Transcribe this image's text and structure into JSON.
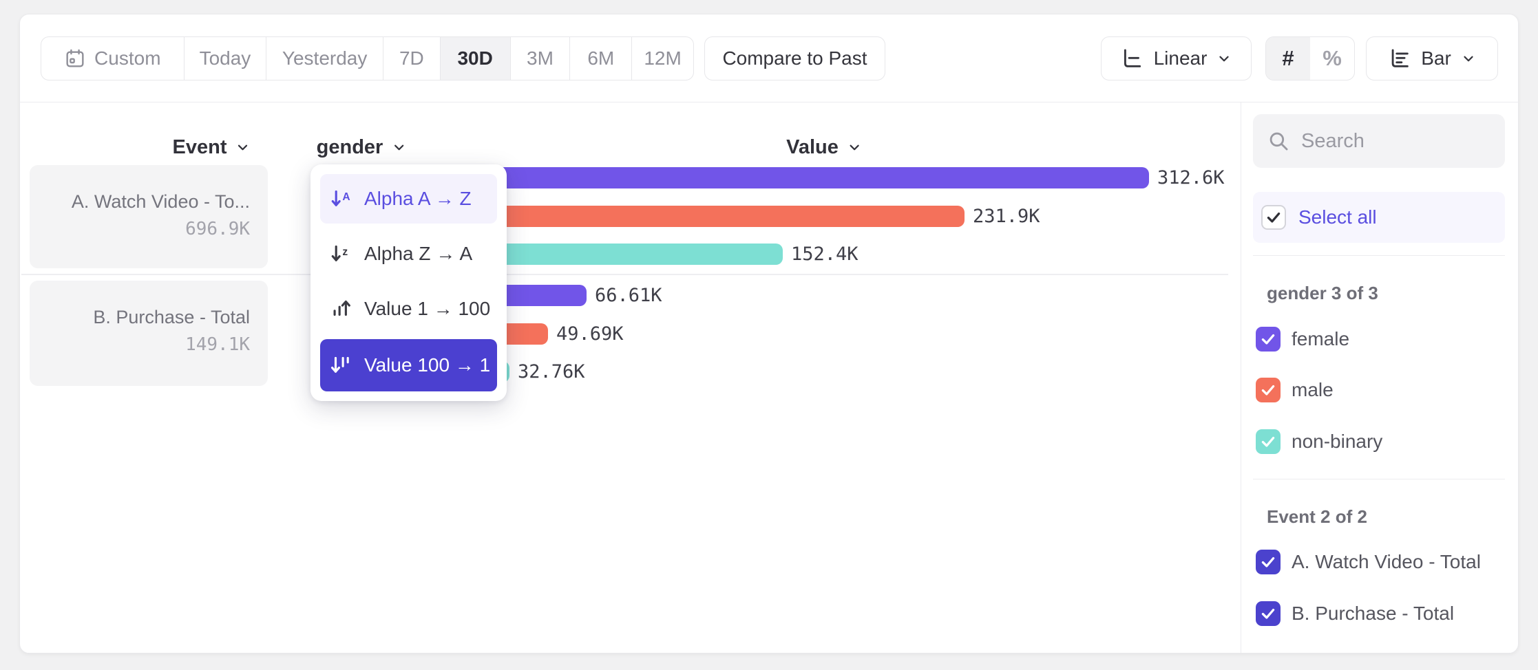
{
  "toolbar": {
    "date_ranges": [
      {
        "label": "Custom",
        "icon": "calendar",
        "selected": false
      },
      {
        "label": "Today",
        "selected": false
      },
      {
        "label": "Yesterday",
        "selected": false
      },
      {
        "label": "7D",
        "selected": false
      },
      {
        "label": "30D",
        "selected": true
      },
      {
        "label": "3M",
        "selected": false
      },
      {
        "label": "6M",
        "selected": false
      },
      {
        "label": "12M",
        "selected": false
      }
    ],
    "compare_button": "Compare to Past",
    "scale_dropdown": "Linear",
    "value_format_toggle": [
      {
        "label": "#",
        "selected": true
      },
      {
        "label": "%",
        "selected": false
      }
    ],
    "chart_type_dropdown": "Bar"
  },
  "columns": {
    "event": "Event",
    "breakdown": "gender",
    "value": "Value"
  },
  "sort_menu": {
    "items": [
      {
        "label": "Alpha A → Z",
        "icon": "sort-alpha-asc",
        "state": "highlighted"
      },
      {
        "label": "Alpha Z → A",
        "icon": "sort-alpha-desc",
        "state": "default"
      },
      {
        "label": "Value 1 → 100",
        "icon": "sort-value-asc",
        "state": "default"
      },
      {
        "label": "Value 100 → 1",
        "icon": "sort-value-desc",
        "state": "selected"
      }
    ]
  },
  "chart_data": {
    "type": "bar",
    "orientation": "horizontal",
    "value_axis_label": "Value",
    "sorted_by": "Value 100 → 1",
    "max_value": 312600,
    "groups": [
      {
        "event": "A. Watch Video - To...",
        "event_full": "A. Watch Video - Total",
        "total_label": "696.9K",
        "bars": [
          {
            "category": "female",
            "value": 312600,
            "label": "312.6K",
            "color": "#7155e8"
          },
          {
            "category": "male",
            "value": 231900,
            "label": "231.9K",
            "color": "#f4715b"
          },
          {
            "category": "non-binary",
            "value": 152400,
            "label": "152.4K",
            "color": "#7ddfd3"
          }
        ]
      },
      {
        "event": "B. Purchase - Total",
        "event_full": "B. Purchase - Total",
        "total_label": "149.1K",
        "bars": [
          {
            "category": "female",
            "value": 66610,
            "label": "66.61K",
            "color": "#7155e8"
          },
          {
            "category": "male",
            "value": 49690,
            "label": "49.69K",
            "color": "#f4715b"
          },
          {
            "category": "non-binary",
            "value": 32760,
            "label": "32.76K",
            "color": "#7ddfd3"
          }
        ]
      }
    ]
  },
  "sidebar": {
    "search_placeholder": "Search",
    "select_all_label": "Select all",
    "sections": [
      {
        "title": "gender 3 of 3",
        "items": [
          {
            "label": "female",
            "checked": true,
            "color": "#7155e8"
          },
          {
            "label": "male",
            "checked": true,
            "color": "#f4715b"
          },
          {
            "label": "non-binary",
            "checked": true,
            "color": "#7ddfd3"
          }
        ]
      },
      {
        "title": "Event 2 of 2",
        "items": [
          {
            "label": "A. Watch Video - Total",
            "checked": true,
            "color": "#4b42cd"
          },
          {
            "label": "B. Purchase - Total",
            "checked": true,
            "color": "#4b42cd"
          }
        ]
      }
    ]
  }
}
